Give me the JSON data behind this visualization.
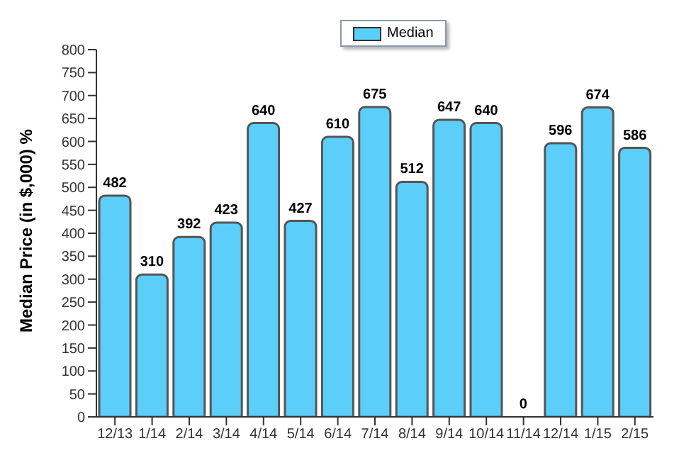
{
  "chart_data": {
    "type": "bar",
    "ylabel": "Median Price (in $,000) %",
    "categories": [
      "12/13",
      "1/14",
      "2/14",
      "3/14",
      "4/14",
      "5/14",
      "6/14",
      "7/14",
      "8/14",
      "9/14",
      "10/14",
      "11/14",
      "12/14",
      "1/15",
      "2/15"
    ],
    "series": [
      {
        "name": "Median",
        "color": "#5bcefa",
        "values": [
          482,
          310,
          392,
          423,
          640,
          427,
          610,
          675,
          512,
          647,
          640,
          0,
          596,
          674,
          586
        ]
      }
    ],
    "ylim": [
      0,
      800
    ],
    "yticks": [
      0,
      50,
      100,
      150,
      200,
      250,
      300,
      350,
      400,
      450,
      500,
      550,
      600,
      650,
      700,
      750,
      800
    ],
    "grid": false,
    "legend": "top",
    "data_labels": true
  }
}
